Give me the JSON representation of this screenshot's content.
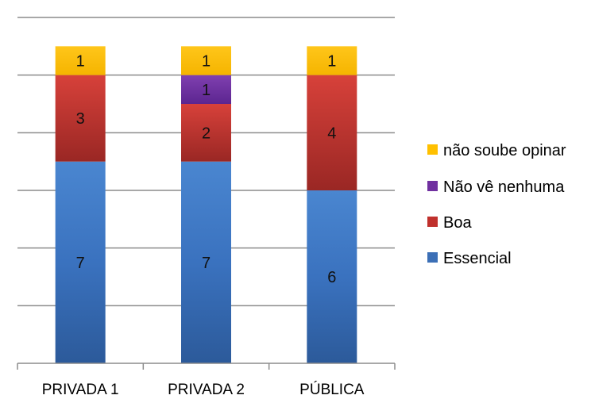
{
  "chart_data": {
    "type": "bar",
    "stacked": true,
    "categories": [
      "PRIVADA 1",
      "PRIVADA 2",
      "PÚBLICA"
    ],
    "series": [
      {
        "name": "Essencial",
        "values": [
          7,
          7,
          6
        ],
        "color": "#3b6fb6"
      },
      {
        "name": "Boa",
        "values": [
          3,
          2,
          4
        ],
        "color": "#c0302c"
      },
      {
        "name": "Não vê nenhuma",
        "values": [
          0,
          1,
          0
        ],
        "color": "#7030a0"
      },
      {
        "name": "não soube opinar",
        "values": [
          1,
          1,
          1
        ],
        "color": "#ffc000"
      }
    ],
    "ylim": [
      0,
      12
    ],
    "grid": true,
    "legend_position": "right",
    "legend_order": [
      "não soube opinar",
      "Não vê nenhuma",
      "Boa",
      "Essencial"
    ]
  }
}
